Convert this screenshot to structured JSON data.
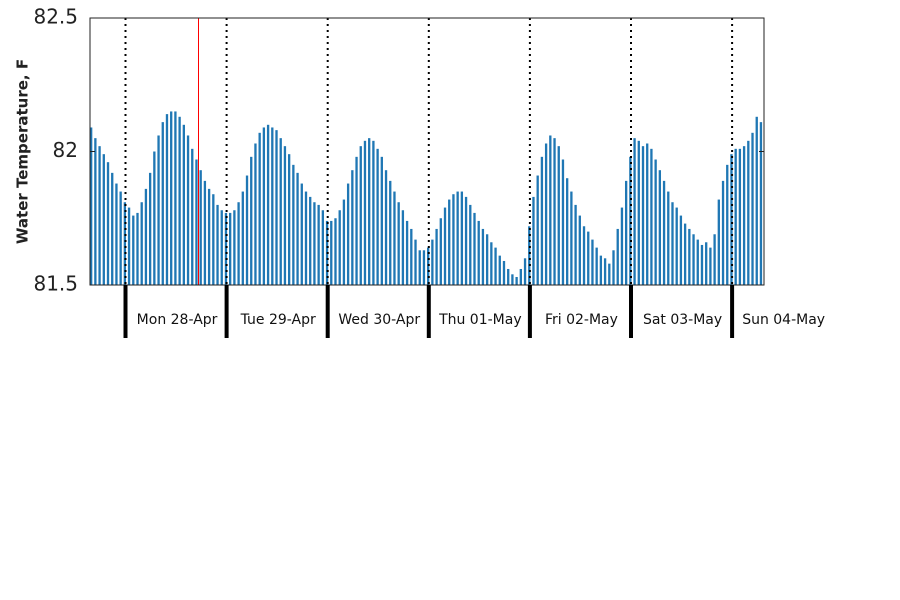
{
  "chart_data": {
    "type": "bar",
    "ylabel": "Water Temperature, F",
    "ylim": [
      81.5,
      82.5
    ],
    "yticks": [
      "81.5",
      "82",
      "82.5"
    ],
    "ytick_values": [
      81.5,
      82.0,
      82.5
    ],
    "bar_color": "#1f77b4",
    "marker_color": "#ff0000",
    "day_labels": [
      "Mon 28-Apr",
      "Tue 29-Apr",
      "Wed 30-Apr",
      "Thu 01-May",
      "Fri 02-May",
      "Sat 03-May",
      "Sun 04-May"
    ],
    "values": [
      82.09,
      82.05,
      82.02,
      81.99,
      81.96,
      81.92,
      81.88,
      81.85,
      81.81,
      81.79,
      81.76,
      81.77,
      81.81,
      81.86,
      81.92,
      82.0,
      82.06,
      82.11,
      82.14,
      82.15,
      82.15,
      82.13,
      82.1,
      82.06,
      82.01,
      81.97,
      81.93,
      81.89,
      81.86,
      81.84,
      81.8,
      81.78,
      81.77,
      81.77,
      81.78,
      81.81,
      81.85,
      81.91,
      81.98,
      82.03,
      82.07,
      82.09,
      82.1,
      82.09,
      82.08,
      82.05,
      82.02,
      81.99,
      81.95,
      81.92,
      81.88,
      81.85,
      81.83,
      81.81,
      81.8,
      81.78,
      81.74,
      81.74,
      81.75,
      81.78,
      81.82,
      81.88,
      81.93,
      81.98,
      82.02,
      82.04,
      82.05,
      82.04,
      82.01,
      81.98,
      81.93,
      81.89,
      81.85,
      81.81,
      81.78,
      81.74,
      81.71,
      81.67,
      81.63,
      81.63,
      81.64,
      81.67,
      81.71,
      81.75,
      81.79,
      81.82,
      81.84,
      81.85,
      81.85,
      81.83,
      81.8,
      81.77,
      81.74,
      81.71,
      81.69,
      81.66,
      81.64,
      81.61,
      81.59,
      81.56,
      81.54,
      81.53,
      81.56,
      81.6,
      81.72,
      81.83,
      81.91,
      81.98,
      82.03,
      82.06,
      82.05,
      82.02,
      81.97,
      81.9,
      81.85,
      81.8,
      81.76,
      81.72,
      81.7,
      81.67,
      81.64,
      81.61,
      81.6,
      81.58,
      81.63,
      81.71,
      81.79,
      81.89,
      81.98,
      82.05,
      82.04,
      82.02,
      82.03,
      82.01,
      81.97,
      81.93,
      81.89,
      81.85,
      81.81,
      81.79,
      81.76,
      81.73,
      81.71,
      81.69,
      81.67,
      81.65,
      81.66,
      81.64,
      81.69,
      81.82,
      81.89,
      81.95,
      81.99,
      82.01,
      82.01,
      82.02,
      82.04,
      82.07,
      82.13,
      82.11
    ]
  }
}
